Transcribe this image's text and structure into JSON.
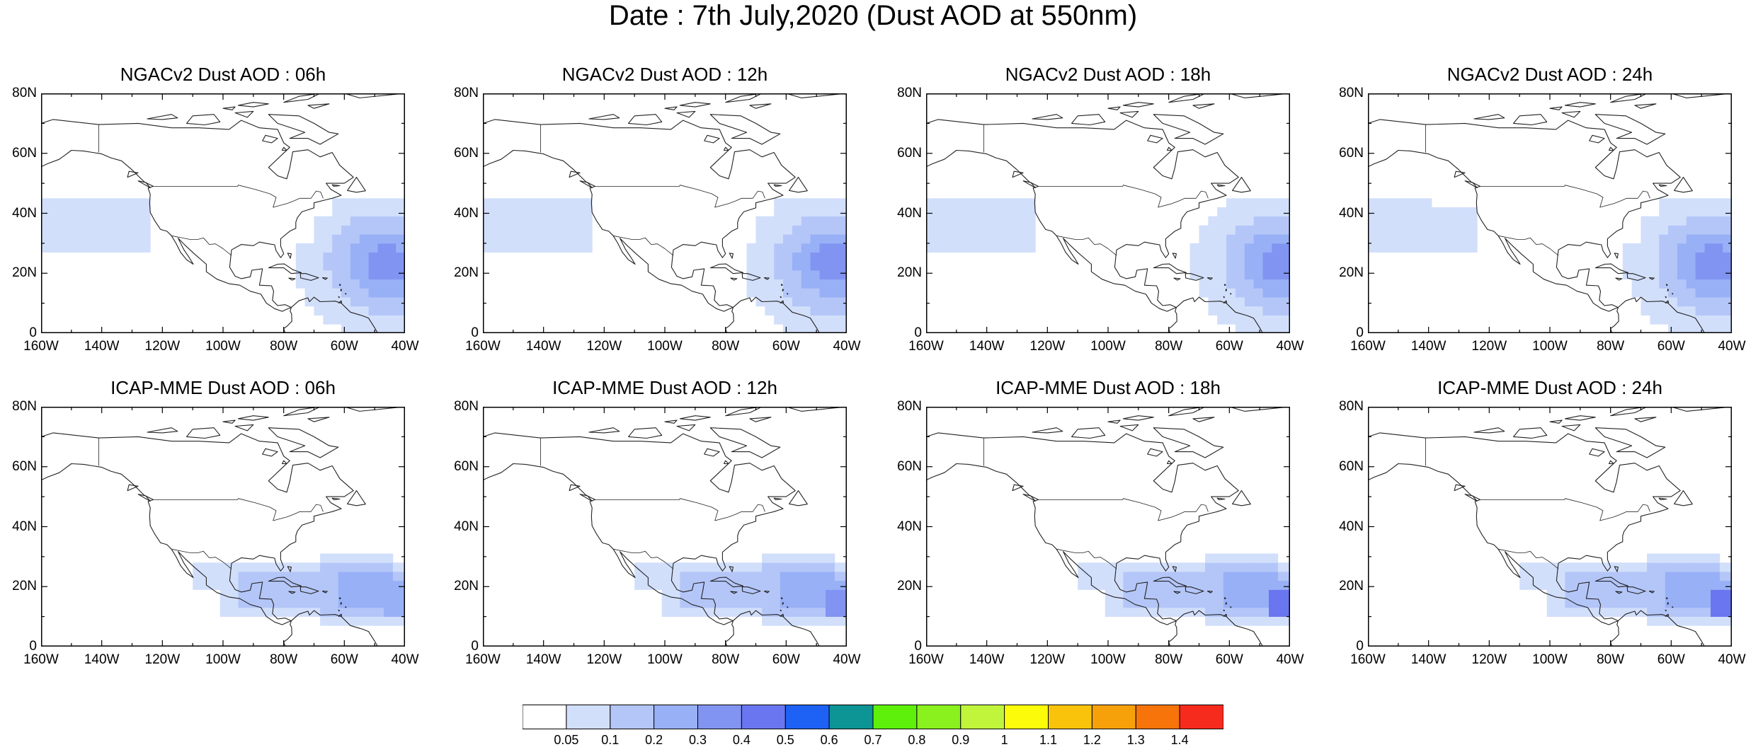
{
  "figure": {
    "title": "Date : 7th July,2020 (Dust AOD at 550nm)"
  },
  "axes": {
    "y_ticks": [
      "80N",
      "60N",
      "40N",
      "20N",
      "0"
    ],
    "x_ticks": [
      "160W",
      "140W",
      "120W",
      "100W",
      "80W",
      "60W",
      "40W"
    ]
  },
  "panels": [
    {
      "title": "NGACv2 Dust AOD : 06h",
      "model": "NGACv2",
      "hour": "06h"
    },
    {
      "title": "NGACv2 Dust AOD : 12h",
      "model": "NGACv2",
      "hour": "12h"
    },
    {
      "title": "NGACv2 Dust AOD : 18h",
      "model": "NGACv2",
      "hour": "18h"
    },
    {
      "title": "NGACv2 Dust AOD : 24h",
      "model": "NGACv2",
      "hour": "24h"
    },
    {
      "title": "ICAP-MME Dust AOD : 06h",
      "model": "ICAP-MME",
      "hour": "06h"
    },
    {
      "title": "ICAP-MME Dust AOD : 12h",
      "model": "ICAP-MME",
      "hour": "12h"
    },
    {
      "title": "ICAP-MME Dust AOD : 18h",
      "model": "ICAP-MME",
      "hour": "18h"
    },
    {
      "title": "ICAP-MME Dust AOD : 24h",
      "model": "ICAP-MME",
      "hour": "24h"
    }
  ],
  "colorbar": {
    "labels": [
      "0.05",
      "0.1",
      "0.2",
      "0.3",
      "0.4",
      "0.5",
      "0.6",
      "0.7",
      "0.8",
      "0.9",
      "1",
      "1.1",
      "1.2",
      "1.3",
      "1.4"
    ],
    "colors": [
      "#ffffff",
      "#d2dffb",
      "#b4c6f8",
      "#98b0f6",
      "#8194f2",
      "#6a76ef",
      "#1e62f5",
      "#0d9494",
      "#5ef00a",
      "#8af01e",
      "#c0f53c",
      "#fbfb0a",
      "#f8c30a",
      "#f6a00a",
      "#f7740a",
      "#f72a1e"
    ]
  }
}
